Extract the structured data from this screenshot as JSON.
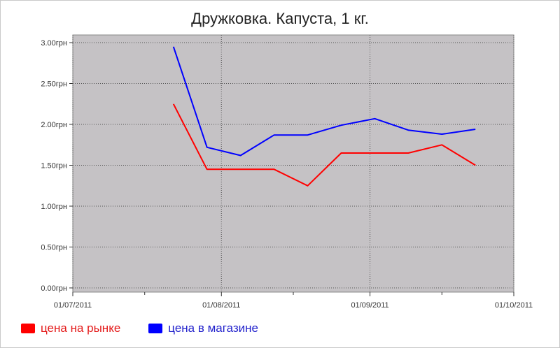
{
  "chart_data": {
    "type": "line",
    "title": "Дружковка. Капуста, 1 кг.",
    "xlabel": "",
    "ylabel": "",
    "x_ticks": [
      "01/07/2011",
      "01/08/2011",
      "01/09/2011",
      "01/10/2011"
    ],
    "y_ticks": [
      "0.00грн",
      "0.50грн",
      "1.00грн",
      "1.50грн",
      "2.00грн",
      "2.50грн",
      "3.00грн"
    ],
    "xlim": [
      "2011-07-01",
      "2011-10-01"
    ],
    "ylim": [
      0,
      3.0
    ],
    "grid": true,
    "legend_position": "bottom-left",
    "series": [
      {
        "name": "цена на рынке",
        "color": "#ff0000",
        "points": [
          {
            "x": "2011-07-22",
            "y": 2.25
          },
          {
            "x": "2011-07-29",
            "y": 1.45
          },
          {
            "x": "2011-08-05",
            "y": 1.45
          },
          {
            "x": "2011-08-12",
            "y": 1.45
          },
          {
            "x": "2011-08-19",
            "y": 1.25
          },
          {
            "x": "2011-08-26",
            "y": 1.65
          },
          {
            "x": "2011-09-02",
            "y": 1.65
          },
          {
            "x": "2011-09-09",
            "y": 1.65
          },
          {
            "x": "2011-09-16",
            "y": 1.75
          },
          {
            "x": "2011-09-23",
            "y": 1.5
          }
        ]
      },
      {
        "name": "цена в магазине",
        "color": "#0000ff",
        "points": [
          {
            "x": "2011-07-22",
            "y": 2.95
          },
          {
            "x": "2011-07-29",
            "y": 1.72
          },
          {
            "x": "2011-08-05",
            "y": 1.62
          },
          {
            "x": "2011-08-12",
            "y": 1.87
          },
          {
            "x": "2011-08-19",
            "y": 1.87
          },
          {
            "x": "2011-08-26",
            "y": 1.99
          },
          {
            "x": "2011-09-02",
            "y": 2.07
          },
          {
            "x": "2011-09-09",
            "y": 1.93
          },
          {
            "x": "2011-09-16",
            "y": 1.88
          },
          {
            "x": "2011-09-23",
            "y": 1.94
          }
        ]
      }
    ]
  }
}
